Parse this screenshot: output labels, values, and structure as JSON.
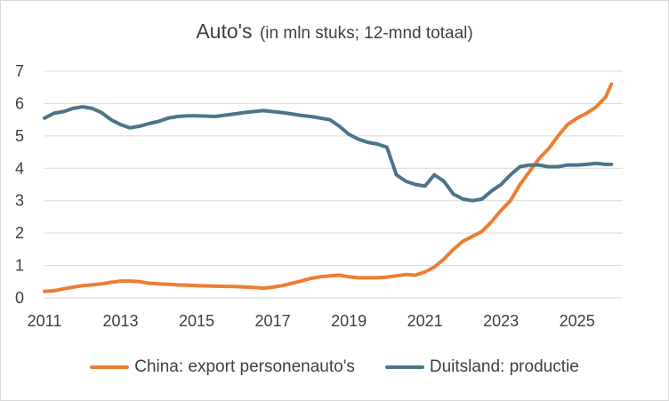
{
  "chart_data": {
    "type": "line",
    "title": "Auto's",
    "subtitle": "(in mln stuks; 12-mnd totaal)",
    "xlabel": "",
    "ylabel": "",
    "xlim": [
      2011,
      2026.2
    ],
    "ylim": [
      0,
      7
    ],
    "grid": "horizontal",
    "legend_position": "bottom",
    "x_ticks": [
      2011,
      2013,
      2015,
      2017,
      2019,
      2021,
      2023,
      2025
    ],
    "y_ticks": [
      0,
      1,
      2,
      3,
      4,
      5,
      6,
      7
    ],
    "series": [
      {
        "name": "China: export personenauto's",
        "color": "#ED7D31",
        "x": [
          2011.0,
          2011.25,
          2011.5,
          2011.75,
          2012.0,
          2012.25,
          2012.5,
          2012.75,
          2013.0,
          2013.25,
          2013.5,
          2013.75,
          2014.0,
          2014.25,
          2014.5,
          2014.75,
          2015.0,
          2015.5,
          2016.0,
          2016.5,
          2016.75,
          2017.0,
          2017.25,
          2017.5,
          2017.75,
          2018.0,
          2018.25,
          2018.5,
          2018.75,
          2019.0,
          2019.25,
          2019.5,
          2019.75,
          2020.0,
          2020.25,
          2020.5,
          2020.75,
          2021.0,
          2021.25,
          2021.5,
          2021.75,
          2022.0,
          2022.25,
          2022.5,
          2022.75,
          2023.0,
          2023.25,
          2023.5,
          2023.75,
          2024.0,
          2024.25,
          2024.5,
          2024.75,
          2025.0,
          2025.25,
          2025.5,
          2025.75,
          2025.9
        ],
        "values": [
          0.2,
          0.22,
          0.28,
          0.33,
          0.38,
          0.4,
          0.43,
          0.48,
          0.52,
          0.52,
          0.5,
          0.45,
          0.43,
          0.42,
          0.4,
          0.39,
          0.38,
          0.36,
          0.35,
          0.32,
          0.3,
          0.33,
          0.38,
          0.45,
          0.52,
          0.6,
          0.65,
          0.68,
          0.7,
          0.65,
          0.62,
          0.62,
          0.62,
          0.64,
          0.68,
          0.72,
          0.7,
          0.8,
          0.95,
          1.2,
          1.5,
          1.75,
          1.9,
          2.05,
          2.35,
          2.7,
          3.0,
          3.5,
          3.9,
          4.3,
          4.6,
          5.0,
          5.35,
          5.55,
          5.7,
          5.9,
          6.2,
          6.6
        ]
      },
      {
        "name": "Duitsland: productie",
        "color": "#4C7489",
        "x": [
          2011.0,
          2011.25,
          2011.5,
          2011.75,
          2012.0,
          2012.25,
          2012.5,
          2012.75,
          2013.0,
          2013.25,
          2013.5,
          2013.75,
          2014.0,
          2014.25,
          2014.5,
          2014.75,
          2015.0,
          2015.5,
          2016.0,
          2016.25,
          2016.5,
          2016.75,
          2017.0,
          2017.25,
          2017.5,
          2017.75,
          2018.0,
          2018.25,
          2018.5,
          2018.75,
          2019.0,
          2019.25,
          2019.5,
          2019.75,
          2020.0,
          2020.25,
          2020.5,
          2020.75,
          2021.0,
          2021.25,
          2021.5,
          2021.75,
          2022.0,
          2022.25,
          2022.5,
          2022.75,
          2023.0,
          2023.25,
          2023.5,
          2023.75,
          2024.0,
          2024.25,
          2024.5,
          2024.75,
          2025.0,
          2025.25,
          2025.5,
          2025.75,
          2025.9
        ],
        "values": [
          5.55,
          5.7,
          5.75,
          5.85,
          5.9,
          5.85,
          5.72,
          5.5,
          5.35,
          5.25,
          5.3,
          5.38,
          5.45,
          5.55,
          5.6,
          5.62,
          5.62,
          5.6,
          5.68,
          5.72,
          5.75,
          5.78,
          5.75,
          5.72,
          5.68,
          5.63,
          5.6,
          5.55,
          5.5,
          5.3,
          5.05,
          4.9,
          4.8,
          4.75,
          4.65,
          3.8,
          3.6,
          3.5,
          3.45,
          3.8,
          3.6,
          3.2,
          3.05,
          3.0,
          3.05,
          3.3,
          3.5,
          3.8,
          4.05,
          4.1,
          4.1,
          4.05,
          4.05,
          4.1,
          4.1,
          4.12,
          4.15,
          4.12,
          4.12
        ]
      }
    ]
  }
}
